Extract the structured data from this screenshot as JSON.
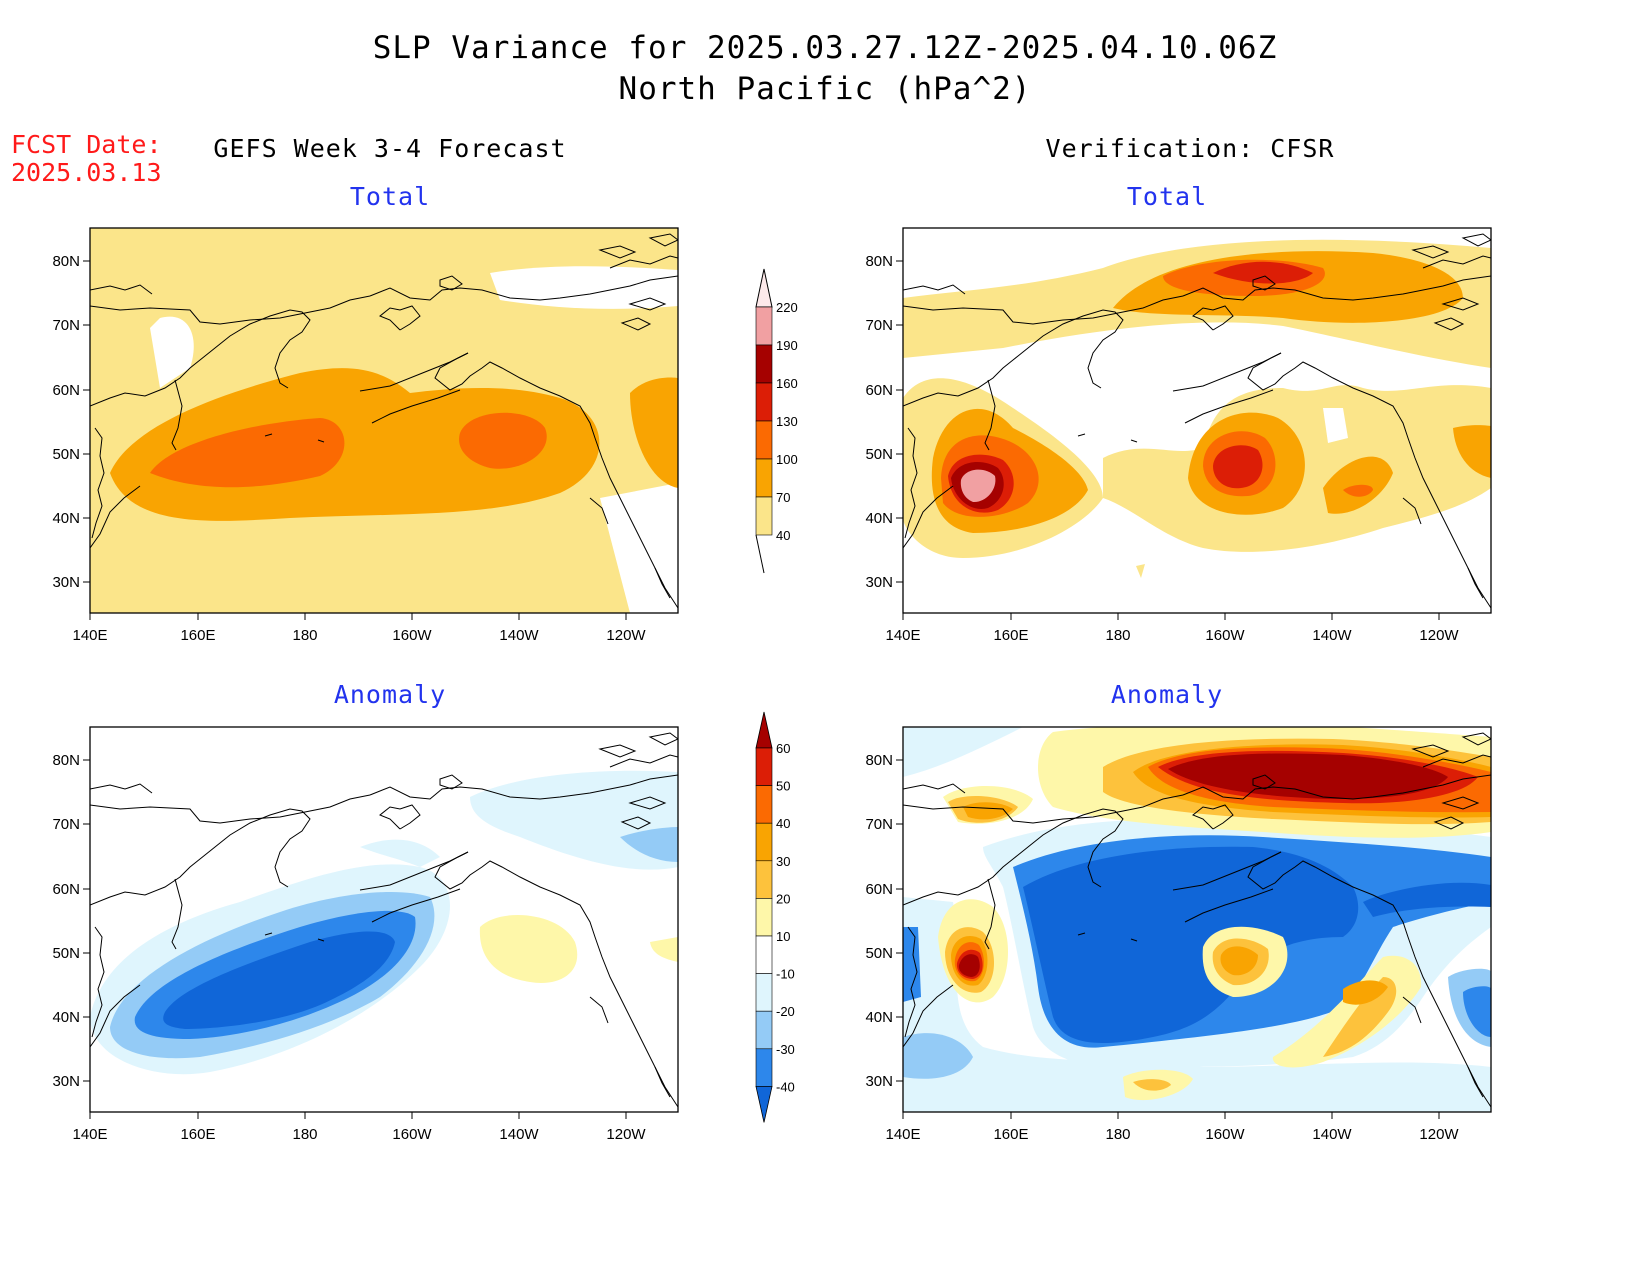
{
  "header": {
    "title_line1": "SLP Variance for 2025.03.27.12Z-2025.04.10.06Z",
    "title_line2": "North Pacific (hPa^2)"
  },
  "forecast_info": {
    "label": "FCST Date:",
    "date": "2025.03.13"
  },
  "columns": {
    "left": "GEFS Week 3-4 Forecast",
    "right": "Verification: CFSR"
  },
  "panel_subtitles": {
    "total": "Total",
    "anomaly": "Anomaly"
  },
  "map": {
    "lon_ticks": [
      "140E",
      "160E",
      "180",
      "160W",
      "140W",
      "120W"
    ],
    "lat_ticks": [
      "80N",
      "70N",
      "60N",
      "50N",
      "40N",
      "30N"
    ]
  },
  "colorbars": {
    "total": {
      "labels": [
        "40",
        "70",
        "100",
        "130",
        "160",
        "190",
        "220"
      ],
      "colors": [
        "#fbe58a",
        "#f9a402",
        "#fb6a02",
        "#dc1e06",
        "#a50100",
        "#f1a0a2",
        "#fde9ea"
      ]
    },
    "anomaly": {
      "labels": [
        "-40",
        "-30",
        "-20",
        "-10",
        "10",
        "20",
        "30",
        "40",
        "50",
        "60"
      ],
      "colors": [
        "#1066d8",
        "#2d87eb",
        "#94cbf6",
        "#dff5fd",
        "#ffffff",
        "#fef7a9",
        "#fdc23c",
        "#f9a402",
        "#fb6a02",
        "#dc1e06",
        "#a50100"
      ]
    }
  },
  "colors": {
    "total_scale": [
      "#fbe58a",
      "#f9a402",
      "#fb6a02",
      "#dc1e06",
      "#a50100",
      "#f1a0a2"
    ],
    "anomaly_neg": [
      "#dff5fd",
      "#94cbf6",
      "#2d87eb",
      "#1066d8"
    ],
    "anomaly_pos": [
      "#fef7a9",
      "#fdc23c",
      "#f9a402",
      "#fb6a02",
      "#dc1e06",
      "#a50100"
    ]
  }
}
